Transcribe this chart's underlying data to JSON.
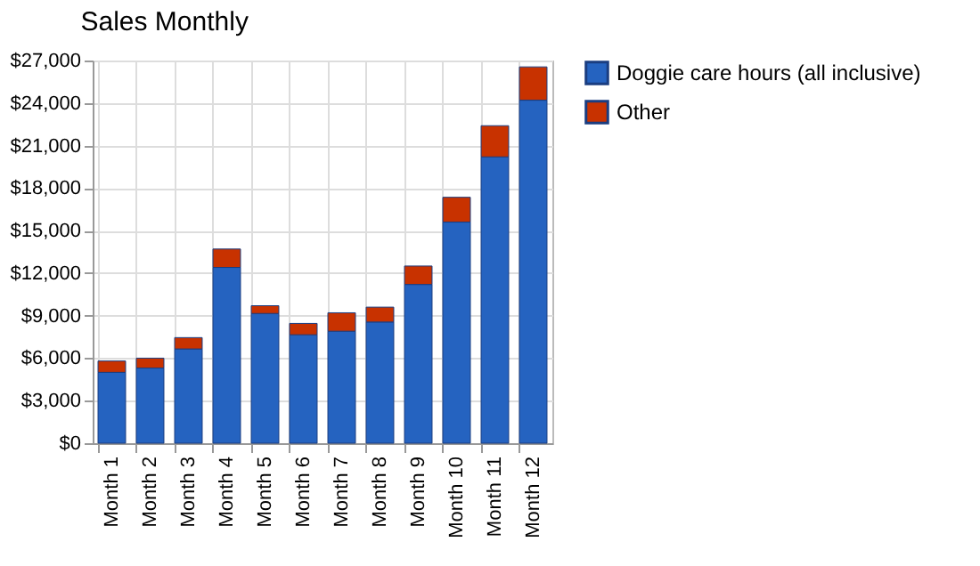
{
  "chart_data": {
    "type": "bar",
    "title": "Sales Monthly",
    "stacked": true,
    "categories": [
      "Month 1",
      "Month 2",
      "Month 3",
      "Month 4",
      "Month 5",
      "Month 6",
      "Month 7",
      "Month 8",
      "Month 9",
      "Month 10",
      "Month 11",
      "Month 12"
    ],
    "series": [
      {
        "name": "Doggie care hours (all inclusive)",
        "color": "#2563c0",
        "values": [
          5000,
          5300,
          6650,
          12400,
          9150,
          7650,
          7900,
          8550,
          11200,
          15600,
          20200,
          24200
        ]
      },
      {
        "name": "Other",
        "color": "#c83200",
        "values": [
          800,
          700,
          800,
          1300,
          550,
          800,
          1300,
          1050,
          1300,
          1750,
          2200,
          2350
        ]
      }
    ],
    "ylim": [
      0,
      27000
    ],
    "yticks": [
      {
        "value": 0,
        "label": "$0"
      },
      {
        "value": 3000,
        "label": "$3,000"
      },
      {
        "value": 6000,
        "label": "$6,000"
      },
      {
        "value": 9000,
        "label": "$9,000"
      },
      {
        "value": 12000,
        "label": "$12,000"
      },
      {
        "value": 15000,
        "label": "$15,000"
      },
      {
        "value": 18000,
        "label": "$18,000"
      },
      {
        "value": 21000,
        "label": "$21,000"
      },
      {
        "value": 24000,
        "label": "$24,000"
      },
      {
        "value": 27000,
        "label": "$27,000"
      }
    ],
    "grid": true,
    "legend": "right"
  }
}
